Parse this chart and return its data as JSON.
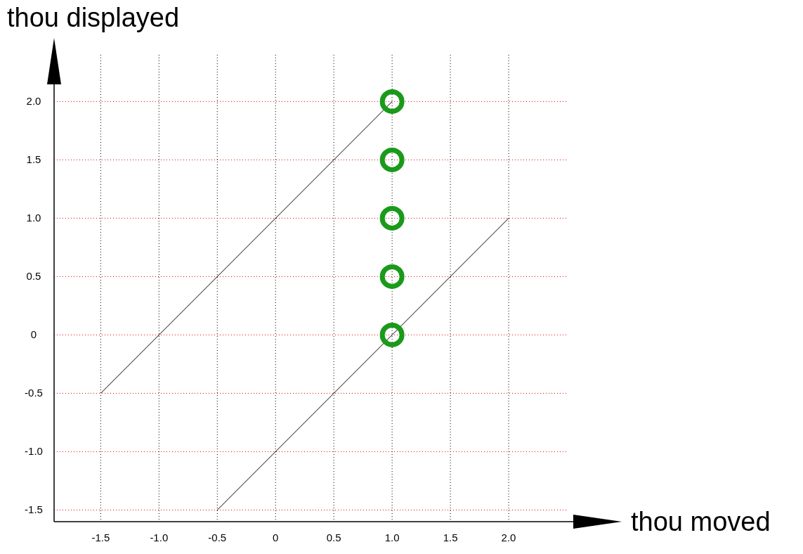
{
  "chart_data": {
    "type": "line",
    "xlabel": "thou moved",
    "ylabel": "thou displayed",
    "xlim": [
      -1.9,
      2.5
    ],
    "ylim": [
      -1.6,
      2.4
    ],
    "xticks": [
      -1.5,
      {
        "value": -1,
        "label": "-1.0"
      },
      -0.5,
      0,
      0.5,
      {
        "value": 1,
        "label": "1.0"
      },
      1.5,
      {
        "value": 2,
        "label": "2.0"
      }
    ],
    "yticks": [
      -1.5,
      {
        "value": -1,
        "label": "-1.0"
      },
      -0.5,
      0,
      0.5,
      {
        "value": 1,
        "label": "1.0"
      },
      1.5,
      {
        "value": 2,
        "label": "2.0"
      }
    ],
    "grid": true,
    "series": [
      {
        "color": "#000000",
        "x": [
          -1.5,
          1
        ],
        "values": [
          -0.5,
          2
        ]
      },
      {
        "color": "#000000",
        "x": [
          -0.5,
          2
        ],
        "values": [
          -1.5,
          1
        ]
      },
      {
        "type": "scatter",
        "color": "#1a9a1a",
        "marker": "circle",
        "x": [
          1,
          1,
          1,
          1,
          1
        ],
        "values": [
          0,
          0.5,
          1,
          1.5,
          2
        ]
      }
    ]
  }
}
